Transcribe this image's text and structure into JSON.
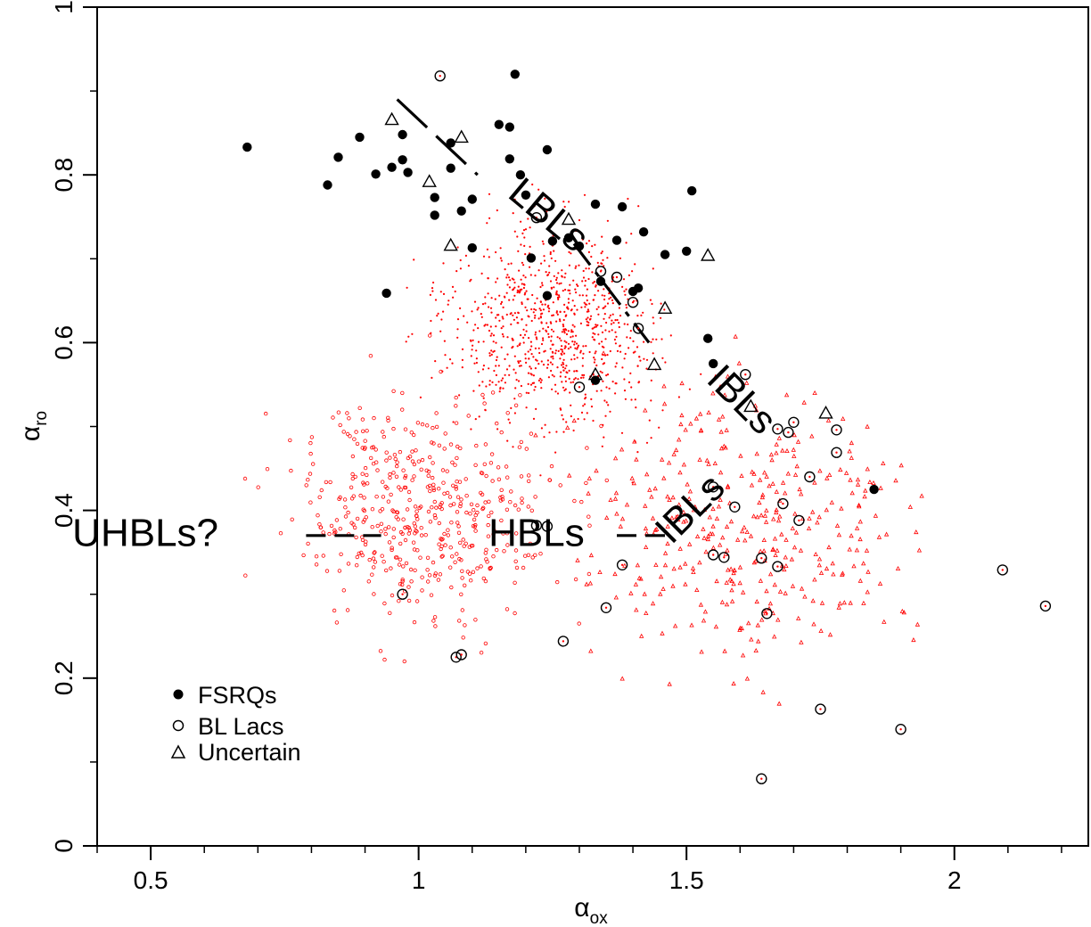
{
  "chart_data": {
    "type": "scatter",
    "xlabel": "α",
    "xlabel_sub": "ox",
    "ylabel": "α",
    "ylabel_sub": "ro",
    "xlim": [
      0.4,
      2.25
    ],
    "ylim": [
      0,
      1
    ],
    "xticks": [
      {
        "value": 0.5,
        "label": "0.5"
      },
      {
        "value": 1,
        "label": "1"
      },
      {
        "value": 1.5,
        "label": "1.5"
      },
      {
        "value": 2,
        "label": "2"
      }
    ],
    "yticks": [
      {
        "value": 0,
        "label": "0"
      },
      {
        "value": 0.2,
        "label": "0.2"
      },
      {
        "value": 0.4,
        "label": "0.4"
      },
      {
        "value": 0.6,
        "label": "0.6"
      },
      {
        "value": 0.8,
        "label": "0.8"
      },
      {
        "value": 1,
        "label": "1"
      }
    ],
    "grid": false,
    "legend_position": "bottom-left",
    "colors": {
      "background_sample": "#ff0000",
      "sample": "#000000"
    },
    "series": [
      {
        "name": "FSRQs",
        "marker": "filled-circle",
        "points": [
          [
            0.68,
            0.833
          ],
          [
            0.83,
            0.788
          ],
          [
            0.85,
            0.821
          ],
          [
            0.89,
            0.845
          ],
          [
            0.92,
            0.801
          ],
          [
            0.95,
            0.809
          ],
          [
            0.97,
            0.848
          ],
          [
            0.97,
            0.818
          ],
          [
            0.98,
            0.803
          ],
          [
            1.03,
            0.773
          ],
          [
            1.03,
            0.752
          ],
          [
            1.06,
            0.808
          ],
          [
            1.06,
            0.838
          ],
          [
            1.1,
            0.771
          ],
          [
            1.08,
            0.757
          ],
          [
            1.1,
            0.713
          ],
          [
            1.15,
            0.86
          ],
          [
            1.17,
            0.857
          ],
          [
            1.18,
            0.92
          ],
          [
            1.17,
            0.819
          ],
          [
            1.19,
            0.8
          ],
          [
            1.2,
            0.776
          ],
          [
            1.21,
            0.701
          ],
          [
            1.24,
            0.83
          ],
          [
            1.25,
            0.721
          ],
          [
            1.24,
            0.656
          ],
          [
            1.28,
            0.725
          ],
          [
            1.3,
            0.715
          ],
          [
            1.33,
            0.765
          ],
          [
            1.34,
            0.673
          ],
          [
            1.37,
            0.722
          ],
          [
            1.38,
            0.762
          ],
          [
            1.42,
            0.732
          ],
          [
            1.46,
            0.705
          ],
          [
            1.5,
            0.709
          ],
          [
            1.51,
            0.781
          ],
          [
            1.4,
            0.661
          ],
          [
            1.41,
            0.665
          ],
          [
            0.94,
            0.659
          ],
          [
            1.33,
            0.555
          ],
          [
            1.54,
            0.605
          ],
          [
            1.55,
            0.575
          ],
          [
            1.85,
            0.425
          ]
        ]
      },
      {
        "name": "BL Lacs",
        "marker": "open-circle",
        "points": [
          [
            1.04,
            0.918
          ],
          [
            1.22,
            0.749
          ],
          [
            1.34,
            0.685
          ],
          [
            1.37,
            0.678
          ],
          [
            1.4,
            0.648
          ],
          [
            1.41,
            0.617
          ],
          [
            1.3,
            0.547
          ],
          [
            1.61,
            0.562
          ],
          [
            1.67,
            0.497
          ],
          [
            1.7,
            0.505
          ],
          [
            1.69,
            0.493
          ],
          [
            1.78,
            0.496
          ],
          [
            1.78,
            0.469
          ],
          [
            1.73,
            0.44
          ],
          [
            1.55,
            0.428
          ],
          [
            1.59,
            0.404
          ],
          [
            1.68,
            0.408
          ],
          [
            1.71,
            0.388
          ],
          [
            1.22,
            0.382
          ],
          [
            1.24,
            0.381
          ],
          [
            1.55,
            0.347
          ],
          [
            1.57,
            0.344
          ],
          [
            1.64,
            0.343
          ],
          [
            1.67,
            0.333
          ],
          [
            1.38,
            0.335
          ],
          [
            0.97,
            0.3
          ],
          [
            1.35,
            0.284
          ],
          [
            1.65,
            0.277
          ],
          [
            1.27,
            0.244
          ],
          [
            1.07,
            0.225
          ],
          [
            1.08,
            0.228
          ],
          [
            1.75,
            0.163
          ],
          [
            1.9,
            0.139
          ],
          [
            1.64,
            0.08
          ],
          [
            2.09,
            0.329
          ],
          [
            2.17,
            0.286
          ]
        ]
      },
      {
        "name": "Uncertain",
        "marker": "open-triangle",
        "points": [
          [
            0.95,
            0.866
          ],
          [
            1.08,
            0.845
          ],
          [
            1.02,
            0.792
          ],
          [
            1.28,
            0.747
          ],
          [
            1.06,
            0.716
          ],
          [
            1.54,
            0.704
          ],
          [
            1.46,
            0.641
          ],
          [
            1.44,
            0.574
          ],
          [
            1.33,
            0.562
          ],
          [
            1.62,
            0.524
          ],
          [
            1.76,
            0.516
          ]
        ]
      }
    ],
    "annotations": [
      {
        "text": "UHBLs?",
        "x": 0.49,
        "y": 0.37,
        "rotation": 0
      },
      {
        "text": "HBLs",
        "x": 1.22,
        "y": 0.37,
        "rotation": 0
      },
      {
        "text": "LBLs",
        "x": 1.24,
        "y": 0.75,
        "rotation": 40
      },
      {
        "text": "IBLs",
        "x": 1.6,
        "y": 0.53,
        "rotation": 45
      },
      {
        "text": "IBLs",
        "x": 1.51,
        "y": 0.4,
        "rotation": -45
      }
    ],
    "lines": [
      {
        "style": "long-dash",
        "points": [
          [
            0.96,
            0.89
          ],
          [
            1.11,
            0.8
          ]
        ]
      },
      {
        "style": "dash-dot",
        "points": [
          [
            1.29,
            0.718
          ],
          [
            1.43,
            0.6
          ]
        ]
      },
      {
        "style": "dash",
        "points": [
          [
            0.79,
            0.37
          ],
          [
            0.93,
            0.37
          ]
        ]
      },
      {
        "style": "dash",
        "points": [
          [
            1.37,
            0.37
          ],
          [
            1.46,
            0.37
          ]
        ]
      }
    ]
  }
}
